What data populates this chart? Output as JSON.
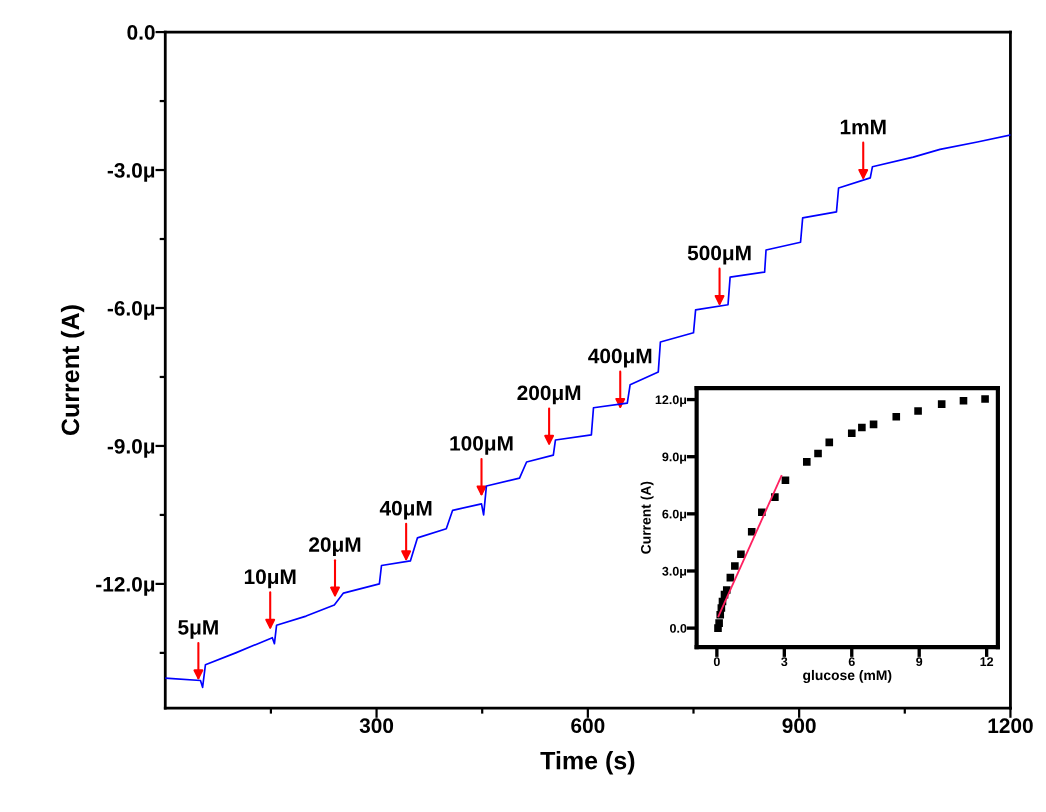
{
  "chart_data": [
    {
      "type": "line",
      "xlabel": "Time (s)",
      "ylabel": "Current (A)",
      "x": [
        0,
        50,
        53,
        57,
        100,
        152,
        155,
        158,
        200,
        240,
        253,
        304,
        307,
        348,
        358,
        399,
        408,
        449,
        452,
        456,
        503,
        513,
        551,
        554,
        605,
        608,
        656,
        660,
        700,
        703,
        750,
        753,
        799,
        802,
        851,
        853,
        902,
        905,
        953,
        956,
        1001,
        1004,
        1062,
        1100,
        1153,
        1200
      ],
      "series": [
        {
          "color": "#0000ff",
          "values": [
            -14.05,
            -14.1,
            -14.25,
            -13.76,
            -13.5,
            -13.17,
            -13.3,
            -12.9,
            -12.7,
            -12.46,
            -12.2,
            -12.0,
            -11.6,
            -11.5,
            -11.0,
            -10.8,
            -10.4,
            -10.26,
            -10.5,
            -9.87,
            -9.7,
            -9.35,
            -9.2,
            -8.87,
            -8.76,
            -8.17,
            -8.07,
            -7.67,
            -7.39,
            -6.74,
            -6.54,
            -6.04,
            -5.93,
            -5.33,
            -5.22,
            -4.74,
            -4.57,
            -4.04,
            -3.91,
            -3.39,
            -3.17,
            -2.93,
            -2.72,
            -2.55,
            -2.39,
            -2.24
          ]
        }
      ],
      "xlim": [
        0,
        1200
      ],
      "ylim": [
        -14.7,
        0
      ],
      "xticks": [
        {
          "value": 150,
          "label": null
        },
        300,
        {
          "value": 450,
          "label": null
        },
        600,
        {
          "value": 750,
          "label": null
        },
        900,
        {
          "value": 1050,
          "label": null
        },
        1200
      ],
      "yticks": [
        {
          "value": -13.5,
          "label": null
        },
        {
          "value": -12,
          "label": "-12.0μ"
        },
        {
          "value": -10.5,
          "label": null
        },
        {
          "value": -9,
          "label": "-9.0μ"
        },
        {
          "value": -7.5,
          "label": null
        },
        {
          "value": -6,
          "label": "-6.0μ"
        },
        {
          "value": -4.5,
          "label": null
        },
        {
          "value": -3,
          "label": "-3.0μ"
        },
        {
          "value": -1.5,
          "label": null
        },
        {
          "value": 0,
          "label": "0.0"
        }
      ],
      "annotations": [
        {
          "text": "5μM",
          "x": 47,
          "y": -14.1
        },
        {
          "text": "10μM",
          "x": 149,
          "y": -13.0
        },
        {
          "text": "20μM",
          "x": 241,
          "y": -12.3
        },
        {
          "text": "40μM",
          "x": 342,
          "y": -11.51
        },
        {
          "text": "100μM",
          "x": 449,
          "y": -10.1
        },
        {
          "text": "200μM",
          "x": 545,
          "y": -9.0
        },
        {
          "text": "400μM",
          "x": 646,
          "y": -8.2
        },
        {
          "text": "500μM",
          "x": 787,
          "y": -5.96
        },
        {
          "text": "1mM",
          "x": 991,
          "y": -3.22
        }
      ]
    },
    {
      "type": "scatter",
      "xlabel": "glucose (mM)",
      "ylabel": "Current (A)",
      "series": [
        {
          "type": "scatter",
          "color": "#000000",
          "marker": "square",
          "x": [
            0.05,
            0.1,
            0.15,
            0.2,
            0.25,
            0.34,
            0.44,
            0.6,
            0.8,
            1.07,
            1.55,
            2.0,
            2.58,
            3.05,
            4.0,
            4.5,
            5.0,
            6.0,
            6.45,
            6.97,
            7.98,
            8.95,
            10.0,
            10.97,
            11.93
          ],
          "values": [
            0.0,
            0.26,
            0.7,
            1.06,
            1.4,
            1.76,
            2.0,
            2.65,
            3.26,
            3.88,
            5.06,
            6.08,
            6.88,
            7.76,
            8.73,
            9.17,
            9.75,
            10.23,
            10.53,
            10.7,
            11.1,
            11.4,
            11.76,
            11.94,
            12.03
          ]
        },
        {
          "type": "line",
          "color": "#ff2060",
          "x": [
            0.07,
            2.87
          ],
          "values": [
            0.62,
            7.99
          ]
        }
      ],
      "xlim": [
        -0.9,
        12.5
      ],
      "ylim": [
        -1.0,
        12.6
      ],
      "xticks": [
        0,
        3,
        6,
        9,
        12
      ],
      "yticks": [
        {
          "value": 0,
          "label": "0.0"
        },
        {
          "value": 3,
          "label": "3.0μ"
        },
        {
          "value": 6,
          "label": "6.0μ"
        },
        {
          "value": 9,
          "label": "9.0μ"
        },
        {
          "value": 12,
          "label": "12.0μ"
        }
      ]
    }
  ]
}
